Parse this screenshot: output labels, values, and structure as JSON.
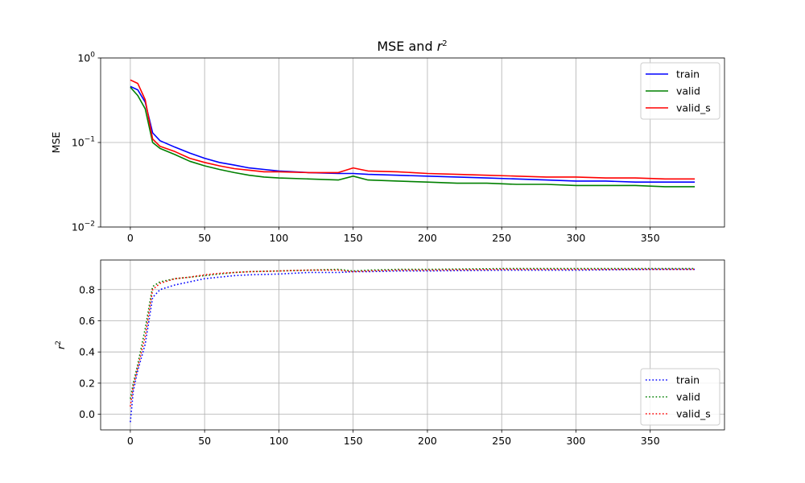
{
  "figure": {
    "title_main": "MSE and ",
    "title_sym": "r",
    "title_sup": "2"
  },
  "chart_data": [
    {
      "type": "line",
      "id": "mse",
      "ylabel": "MSE",
      "yscale": "log",
      "ylim": [
        0.01,
        1
      ],
      "xlim": [
        -20,
        400
      ],
      "xticks": [
        0,
        50,
        100,
        150,
        200,
        250,
        300,
        350
      ],
      "yticks": [
        0.01,
        0.1,
        1
      ],
      "ytick_labels": [
        {
          "base": "10",
          "exp": "−2"
        },
        {
          "base": "10",
          "exp": "−1"
        },
        {
          "base": "10",
          "exp": "0"
        }
      ],
      "grid": true,
      "legend_position": "upper right",
      "x": [
        0,
        5,
        10,
        15,
        20,
        30,
        40,
        50,
        60,
        70,
        80,
        90,
        100,
        120,
        140,
        150,
        160,
        180,
        200,
        220,
        240,
        260,
        280,
        300,
        320,
        340,
        360,
        380
      ],
      "series": [
        {
          "name": "train",
          "color": "#0000ff",
          "linestyle": "solid",
          "values": [
            0.46,
            0.42,
            0.3,
            0.13,
            0.105,
            0.088,
            0.075,
            0.065,
            0.058,
            0.054,
            0.05,
            0.048,
            0.046,
            0.044,
            0.043,
            0.043,
            0.042,
            0.041,
            0.04,
            0.039,
            0.038,
            0.037,
            0.036,
            0.035,
            0.035,
            0.034,
            0.034,
            0.034
          ]
        },
        {
          "name": "valid",
          "color": "#008000",
          "linestyle": "solid",
          "values": [
            0.45,
            0.36,
            0.25,
            0.1,
            0.085,
            0.072,
            0.06,
            0.053,
            0.048,
            0.044,
            0.041,
            0.039,
            0.038,
            0.037,
            0.036,
            0.04,
            0.036,
            0.035,
            0.034,
            0.033,
            0.033,
            0.032,
            0.032,
            0.031,
            0.031,
            0.031,
            0.03,
            0.03
          ]
        },
        {
          "name": "valid_s",
          "color": "#ff0000",
          "linestyle": "solid",
          "values": [
            0.55,
            0.5,
            0.32,
            0.11,
            0.09,
            0.078,
            0.065,
            0.058,
            0.053,
            0.049,
            0.047,
            0.045,
            0.045,
            0.044,
            0.044,
            0.05,
            0.046,
            0.045,
            0.043,
            0.042,
            0.041,
            0.04,
            0.039,
            0.039,
            0.038,
            0.038,
            0.037,
            0.037
          ]
        }
      ]
    },
    {
      "type": "line",
      "id": "r2",
      "ylabel_sym": "r",
      "ylabel_sup": "2",
      "yscale": "linear",
      "ylim": [
        -0.1,
        0.99
      ],
      "xlim": [
        -20,
        400
      ],
      "xticks": [
        0,
        50,
        100,
        150,
        200,
        250,
        300,
        350
      ],
      "yticks": [
        0,
        0.2,
        0.4,
        0.6,
        0.8
      ],
      "ytick_labels": [
        "0.0",
        "0.2",
        "0.4",
        "0.6",
        "0.8"
      ],
      "grid": true,
      "legend_position": "lower right",
      "x": [
        0,
        2,
        5,
        10,
        15,
        20,
        30,
        40,
        50,
        60,
        70,
        80,
        100,
        120,
        140,
        150,
        160,
        180,
        200,
        250,
        300,
        350,
        380
      ],
      "series": [
        {
          "name": "train",
          "color": "#0000ff",
          "linestyle": "dotted",
          "values": [
            -0.05,
            0.15,
            0.28,
            0.45,
            0.75,
            0.8,
            0.83,
            0.85,
            0.87,
            0.88,
            0.89,
            0.895,
            0.9,
            0.91,
            0.91,
            0.915,
            0.915,
            0.92,
            0.92,
            0.925,
            0.925,
            0.93,
            0.93
          ]
        },
        {
          "name": "valid",
          "color": "#008000",
          "linestyle": "dotted",
          "values": [
            0.1,
            0.2,
            0.32,
            0.55,
            0.82,
            0.85,
            0.87,
            0.88,
            0.89,
            0.9,
            0.91,
            0.915,
            0.92,
            0.925,
            0.93,
            0.92,
            0.925,
            0.93,
            0.93,
            0.935,
            0.935,
            0.935,
            0.935
          ]
        },
        {
          "name": "valid_s",
          "color": "#ff0000",
          "linestyle": "dotted",
          "values": [
            0.05,
            0.18,
            0.3,
            0.5,
            0.8,
            0.84,
            0.87,
            0.88,
            0.895,
            0.905,
            0.91,
            0.915,
            0.92,
            0.925,
            0.925,
            0.915,
            0.92,
            0.925,
            0.925,
            0.93,
            0.93,
            0.93,
            0.93
          ]
        }
      ]
    }
  ]
}
